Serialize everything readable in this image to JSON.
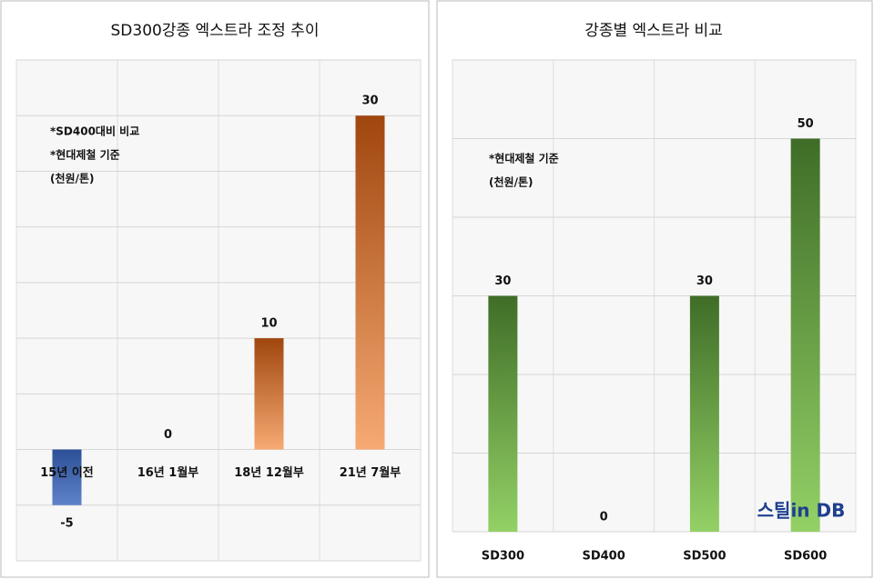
{
  "chart_data": [
    {
      "type": "bar",
      "title": "SD300강종 엑스트라 조정 추이",
      "annotations": [
        "*SD400대비 비교",
        "*현대제철 기준",
        "(천원/톤)"
      ],
      "categories": [
        "15년 이전",
        "16년 1월부",
        "18년 12월부",
        "21년 7월부"
      ],
      "values": [
        -5,
        0,
        10,
        30
      ],
      "gradient": [
        "#a0460f",
        "#f6aa72"
      ],
      "negative_gradient": [
        "#2c4f98",
        "#5f83c9"
      ],
      "ylim": [
        -10,
        35
      ],
      "yticks": [
        -10,
        -5,
        0,
        5,
        10,
        15,
        20,
        25,
        30,
        35
      ],
      "grid": true
    },
    {
      "type": "bar",
      "title": "강종별 엑스트라 비교",
      "annotations": [
        "*현대제철 기준",
        "(천원/톤)"
      ],
      "categories": [
        "SD300",
        "SD400",
        "SD500",
        "SD600"
      ],
      "values": [
        30,
        0,
        30,
        50
      ],
      "gradient": [
        "#3f6d27",
        "#93d166"
      ],
      "ylim": [
        0,
        60
      ],
      "yticks": [
        0,
        10,
        20,
        30,
        40,
        50,
        60
      ],
      "grid": true
    }
  ],
  "logo": "스틸in DB"
}
